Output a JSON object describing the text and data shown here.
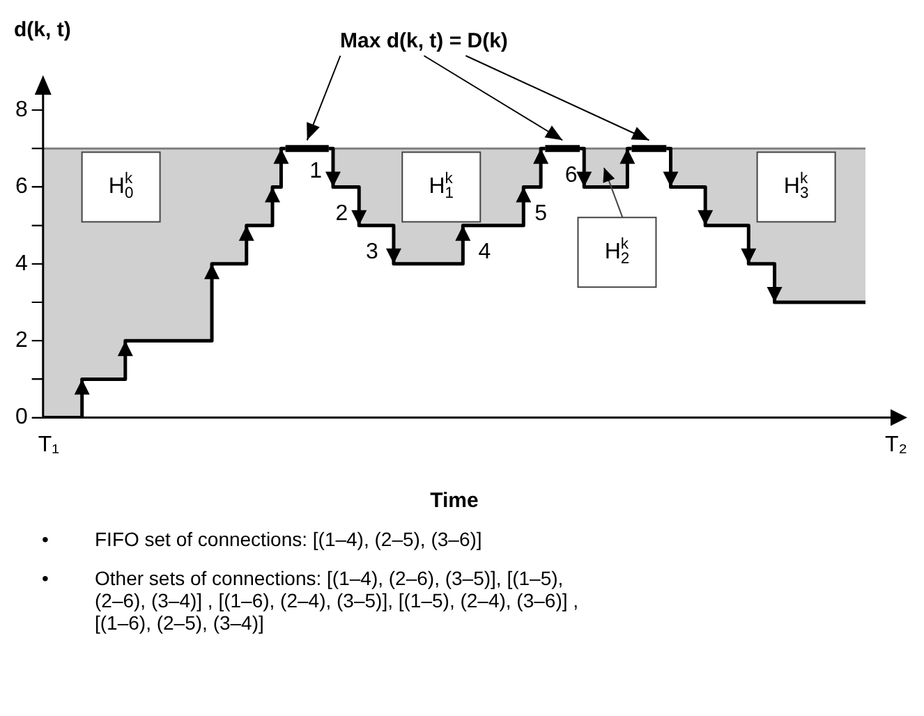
{
  "chart_data": {
    "type": "step",
    "xlabel": "Time",
    "ylabel": "d(k, t)",
    "categories": [
      null,
      null,
      null,
      null,
      null,
      null,
      null,
      null,
      null,
      null,
      null,
      null,
      null,
      null,
      null,
      null,
      null,
      null,
      null,
      null,
      null,
      null,
      null,
      null,
      null,
      null,
      null,
      null,
      null,
      null,
      null,
      null,
      null,
      null,
      null,
      null,
      null,
      null,
      null,
      null,
      null,
      null,
      null,
      null,
      null,
      null,
      null,
      null,
      null,
      null,
      null,
      null,
      null,
      null,
      null,
      null,
      null,
      null,
      null,
      null,
      null,
      null,
      null,
      null,
      null,
      null,
      null,
      null,
      null,
      null,
      null,
      null,
      null,
      null,
      null,
      null,
      null,
      null,
      null,
      null,
      null,
      null,
      null,
      null,
      null,
      null,
      null,
      null,
      null,
      null,
      null,
      null,
      null,
      null,
      null,
      null
    ],
    "series": [
      {
        "color": "#000000",
        "values": [
          0,
          0,
          0,
          0,
          0,
          1,
          1,
          1,
          1,
          1,
          2,
          2,
          2,
          2,
          2,
          2,
          2,
          2,
          2,
          2,
          4,
          4,
          4,
          4,
          5,
          5,
          5,
          6,
          7,
          7,
          7,
          7,
          7,
          7,
          6,
          6,
          6,
          5,
          5,
          5,
          5,
          4,
          4,
          4,
          4,
          4,
          4,
          4,
          4,
          5,
          5,
          5,
          5,
          5,
          5,
          5,
          6,
          6,
          7,
          7,
          7,
          7,
          7,
          6,
          6,
          6,
          6,
          6,
          7,
          7,
          7,
          7,
          7,
          6,
          6,
          6,
          6,
          5,
          5,
          5,
          5,
          5,
          4,
          4,
          4,
          3,
          3,
          3,
          3,
          3,
          3,
          3,
          3,
          3,
          3,
          3
        ],
        "lower": [
          0,
          0,
          0,
          0,
          0,
          1,
          1,
          1,
          1,
          1,
          2,
          2,
          2,
          2,
          2,
          2,
          2,
          2,
          2,
          2,
          4,
          4,
          4,
          4,
          5,
          5,
          5,
          6,
          7,
          7,
          7,
          7,
          7,
          7,
          6,
          6,
          6,
          5,
          5,
          5,
          5,
          4,
          4,
          4,
          4,
          4,
          4,
          4,
          4,
          5,
          5,
          5,
          5,
          5,
          5,
          5,
          6,
          6,
          7,
          7,
          7,
          7,
          7,
          6,
          6,
          6,
          6,
          6,
          7,
          7,
          7,
          7,
          7,
          6,
          6,
          6,
          6,
          5,
          5,
          5,
          5,
          5,
          4,
          4,
          4,
          3,
          3,
          3,
          3,
          3,
          3,
          3,
          3,
          3,
          3,
          3
        ],
        "upper": [
          7,
          7,
          7,
          7,
          7,
          7,
          7,
          7,
          7,
          7,
          7,
          7,
          7,
          7,
          7,
          7,
          7,
          7,
          7,
          7,
          7,
          7,
          7,
          7,
          7,
          7,
          7,
          7,
          7,
          7,
          7,
          7,
          7,
          7,
          7,
          7,
          7,
          7,
          7,
          7,
          7,
          7,
          7,
          7,
          7,
          7,
          7,
          7,
          7,
          7,
          7,
          7,
          7,
          7,
          7,
          7,
          7,
          7,
          7,
          7,
          7,
          7,
          7,
          7,
          7,
          7,
          7,
          7,
          7,
          7,
          7,
          7,
          7,
          7,
          7,
          7,
          7,
          7,
          7,
          7,
          7,
          7,
          7,
          7,
          7,
          7,
          7,
          7,
          7,
          7,
          7,
          7,
          7,
          7,
          7,
          7
        ]
      }
    ],
    "line_style": "solid",
    "marker": "none",
    "ylim": [
      0,
      8.4
    ],
    "yticks": [
      0,
      {
        "value": 1,
        "label": null
      },
      2,
      {
        "value": 3,
        "label": null
      },
      4,
      {
        "value": 5,
        "label": null
      },
      6,
      {
        "value": 7,
        "label": null
      },
      8
    ],
    "ref_lines": [
      {
        "axis": "y",
        "value": 7,
        "color": "#808080"
      }
    ],
    "grid": false,
    "legend": false,
    "annotations": [
      "Max d(k, t) = D(k)",
      "T₁",
      "T₂",
      "H$_{0}$$^{k}$",
      "H$_{1}$$^{k}$",
      "H$_{2}$$^{k}$",
      "H$_{3}$$^{k}$",
      "1",
      "2",
      "3",
      "4",
      "5",
      "6",
      "• FIFO set of connections: [(1–4), (2–5), (3–6)]",
      "• Other sets of connections: [(1–4), (2–6), (3–5)], [(1–5), (2–6), (3–4)] , [(1–6), (2–4), (3–5)], [(1–5), (2–4), (3–6)] , [(1–6), (2–5), (3–4)]"
    ]
  }
}
